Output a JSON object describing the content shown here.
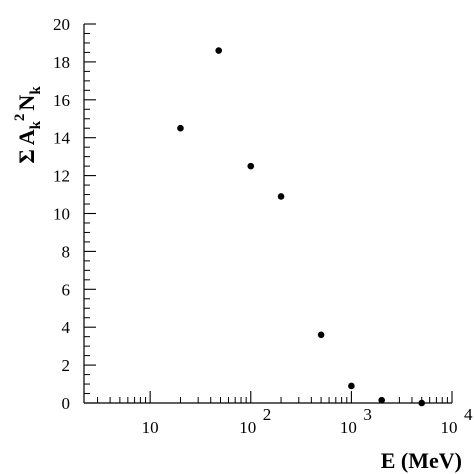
{
  "chart_data": {
    "type": "scatter",
    "title": "",
    "xlabel": "E (MeV)",
    "ylabel_parts": {
      "sigma": "Σ",
      "A": "A",
      "sub_k1": "k",
      "sup_2": "2",
      "N": "N",
      "sub_k2": "k"
    },
    "x_scale": "log",
    "xlim": [
      2.2,
      10000
    ],
    "ylim": [
      0,
      20
    ],
    "grid": false,
    "legend": "none",
    "x_ticks": [
      {
        "value": 10,
        "base": "10",
        "exp": ""
      },
      {
        "value": 100,
        "base": "10",
        "exp": "2"
      },
      {
        "value": 1000,
        "base": "10",
        "exp": "3"
      },
      {
        "value": 10000,
        "base": "10",
        "exp": "4"
      }
    ],
    "y_ticks": [
      "0",
      "2",
      "4",
      "6",
      "8",
      "10",
      "12",
      "14",
      "16",
      "18",
      "20"
    ],
    "points": [
      {
        "x": 20,
        "y": 14.5
      },
      {
        "x": 48,
        "y": 18.6
      },
      {
        "x": 100,
        "y": 12.5
      },
      {
        "x": 200,
        "y": 10.9
      },
      {
        "x": 500,
        "y": 3.6
      },
      {
        "x": 1000,
        "y": 0.9
      },
      {
        "x": 2000,
        "y": 0.15
      },
      {
        "x": 5000,
        "y": 0.0
      }
    ]
  },
  "colors": {
    "axis": "#000000",
    "marker": "#000000",
    "background": "#ffffff"
  }
}
